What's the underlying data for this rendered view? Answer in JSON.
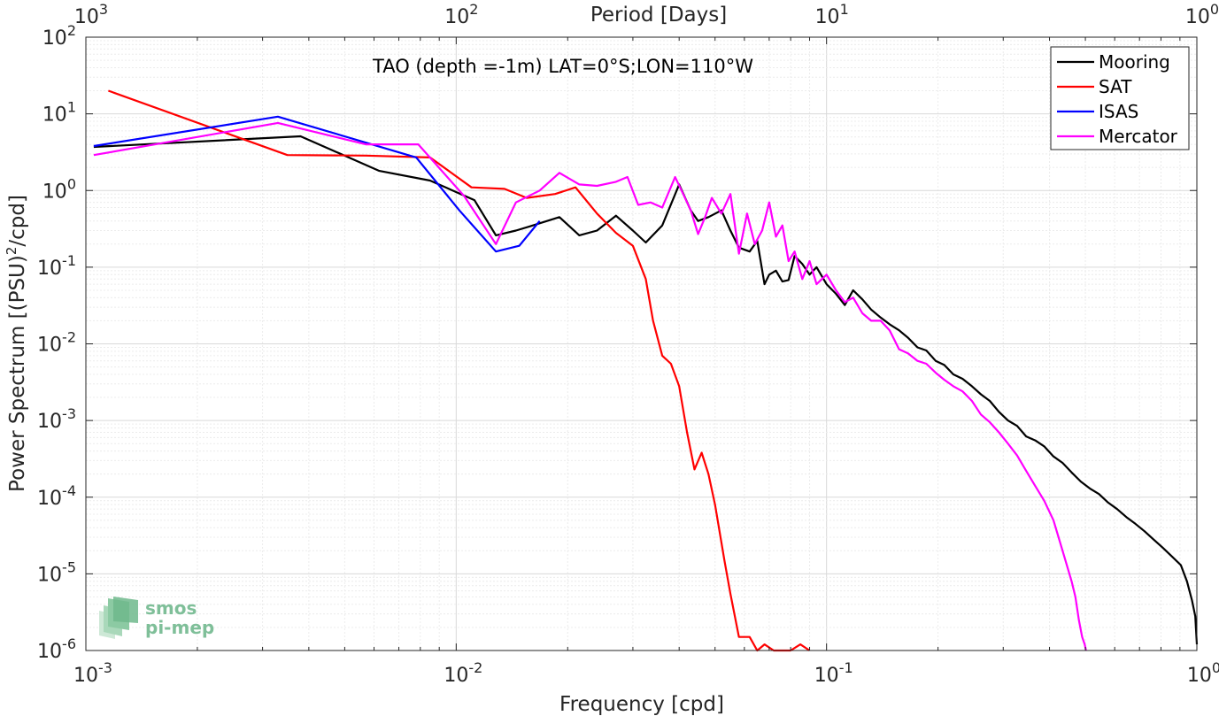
{
  "chart_data": {
    "type": "line",
    "title": "TAO (depth =-1m) LAT=0°S;LON=110°W",
    "xlabel": "Frequency [cpd]",
    "ylabel_main": "Power Spectrum [(PSU)",
    "ylabel_sup": "2",
    "ylabel_tail": "/cpd]",
    "top_xlabel": "Period [Days]",
    "x_scale": "log",
    "y_scale": "log",
    "xlim": [
      0.001,
      1
    ],
    "ylim": [
      1e-06,
      100
    ],
    "grid": true,
    "legend_position": "top-right",
    "x_ticks": [
      {
        "value": 0.001,
        "base": "10",
        "exp": "-3"
      },
      {
        "value": 0.01,
        "base": "10",
        "exp": "-2"
      },
      {
        "value": 0.1,
        "base": "10",
        "exp": "-1"
      },
      {
        "value": 1,
        "base": "10",
        "exp": "0"
      }
    ],
    "top_ticks": [
      {
        "freq": 0.001,
        "base": "10",
        "exp": "3"
      },
      {
        "freq": 0.01,
        "base": "10",
        "exp": "2"
      },
      {
        "freq": 0.1,
        "base": "10",
        "exp": "1"
      },
      {
        "freq": 1,
        "base": "10",
        "exp": "0"
      }
    ],
    "y_ticks": [
      {
        "value": 100,
        "base": "10",
        "exp": "2"
      },
      {
        "value": 10,
        "base": "10",
        "exp": "1"
      },
      {
        "value": 1,
        "base": "10",
        "exp": "0"
      },
      {
        "value": 0.1,
        "base": "10",
        "exp": "-1"
      },
      {
        "value": 0.01,
        "base": "10",
        "exp": "-2"
      },
      {
        "value": 0.001,
        "base": "10",
        "exp": "-3"
      },
      {
        "value": 0.0001,
        "base": "10",
        "exp": "-4"
      },
      {
        "value": 1e-05,
        "base": "10",
        "exp": "-5"
      },
      {
        "value": 1e-06,
        "base": "10",
        "exp": "-6"
      }
    ],
    "series": [
      {
        "name": "Mooring",
        "color": "#000000",
        "x": [
          0.00105,
          0.0038,
          0.0062,
          0.0085,
          0.0112,
          0.0128,
          0.0145,
          0.0158,
          0.019,
          0.0215,
          0.024,
          0.027,
          0.03,
          0.0325,
          0.036,
          0.04,
          0.043,
          0.045,
          0.048,
          0.052,
          0.055,
          0.058,
          0.062,
          0.065,
          0.068,
          0.07,
          0.073,
          0.076,
          0.079,
          0.082,
          0.086,
          0.09,
          0.094,
          0.1,
          0.106,
          0.112,
          0.118,
          0.125,
          0.132,
          0.14,
          0.148,
          0.157,
          0.166,
          0.176,
          0.186,
          0.197,
          0.208,
          0.22,
          0.233,
          0.247,
          0.261,
          0.276,
          0.292,
          0.309,
          0.327,
          0.346,
          0.366,
          0.387,
          0.41,
          0.434,
          0.459,
          0.486,
          0.514,
          0.544,
          0.576,
          0.609,
          0.645,
          0.682,
          0.722,
          0.764,
          0.808,
          0.855,
          0.905,
          0.94,
          0.97,
          0.99,
          1.0
        ],
        "values": [
          3.7,
          5.1,
          1.8,
          1.35,
          0.75,
          0.26,
          0.3,
          0.34,
          0.45,
          0.26,
          0.3,
          0.47,
          0.3,
          0.21,
          0.35,
          1.2,
          0.55,
          0.4,
          0.45,
          0.55,
          0.3,
          0.18,
          0.16,
          0.22,
          0.06,
          0.08,
          0.09,
          0.065,
          0.068,
          0.14,
          0.11,
          0.08,
          0.1,
          0.06,
          0.045,
          0.032,
          0.05,
          0.038,
          0.028,
          0.022,
          0.018,
          0.015,
          0.012,
          0.009,
          0.0082,
          0.006,
          0.0053,
          0.004,
          0.0035,
          0.0028,
          0.0022,
          0.0018,
          0.0013,
          0.001,
          0.00085,
          0.00062,
          0.00055,
          0.00046,
          0.00034,
          0.00028,
          0.00021,
          0.00016,
          0.00013,
          0.00011,
          8.5e-05,
          7e-05,
          5.5e-05,
          4.5e-05,
          3.6e-05,
          2.8e-05,
          2.2e-05,
          1.7e-05,
          1.3e-05,
          8e-06,
          4.5e-06,
          2.8e-06,
          1.2e-06
        ]
      },
      {
        "name": "SAT",
        "color": "#ff0000",
        "x": [
          0.00115,
          0.0035,
          0.0057,
          0.0085,
          0.011,
          0.0135,
          0.0155,
          0.0185,
          0.021,
          0.024,
          0.027,
          0.03,
          0.0325,
          0.034,
          0.036,
          0.038,
          0.04,
          0.042,
          0.044,
          0.046,
          0.048,
          0.05,
          0.053,
          0.055,
          0.058,
          0.062,
          0.065,
          0.068,
          0.072,
          0.075,
          0.08,
          0.085,
          0.09
        ],
        "values": [
          20,
          2.9,
          2.85,
          2.7,
          1.1,
          1.05,
          0.8,
          0.9,
          1.1,
          0.5,
          0.28,
          0.19,
          0.07,
          0.02,
          0.007,
          0.0055,
          0.0028,
          0.0007,
          0.00023,
          0.00038,
          0.0002,
          8e-05,
          1.5e-05,
          5.5e-06,
          1.5e-06,
          1.5e-06,
          1e-06,
          1.2e-06,
          8e-07,
          1e-06,
          7e-07,
          1.2e-06,
          9e-07
        ]
      },
      {
        "name": "ISAS",
        "color": "#0000ff",
        "x": [
          0.00105,
          0.0033,
          0.0078,
          0.0102,
          0.0128,
          0.0148,
          0.0168
        ],
        "values": [
          3.8,
          9.2,
          2.7,
          0.55,
          0.16,
          0.19,
          0.4
        ]
      },
      {
        "name": "Mercator",
        "color": "#ff00ff",
        "x": [
          0.00105,
          0.0033,
          0.0057,
          0.0079,
          0.0105,
          0.0128,
          0.0145,
          0.0168,
          0.019,
          0.0215,
          0.024,
          0.027,
          0.029,
          0.031,
          0.0335,
          0.036,
          0.039,
          0.041,
          0.043,
          0.045,
          0.047,
          0.049,
          0.052,
          0.055,
          0.058,
          0.061,
          0.064,
          0.067,
          0.07,
          0.073,
          0.076,
          0.079,
          0.082,
          0.086,
          0.09,
          0.094,
          0.1,
          0.106,
          0.112,
          0.118,
          0.125,
          0.132,
          0.14,
          0.148,
          0.157,
          0.166,
          0.176,
          0.186,
          0.197,
          0.208,
          0.22,
          0.233,
          0.247,
          0.261,
          0.276,
          0.292,
          0.309,
          0.327,
          0.346,
          0.366,
          0.387,
          0.41,
          0.434,
          0.459,
          0.47,
          0.48,
          0.49,
          0.498,
          0.502
        ],
        "values": [
          2.9,
          7.6,
          4.0,
          4.0,
          0.85,
          0.2,
          0.7,
          1.0,
          1.7,
          1.2,
          1.15,
          1.3,
          1.5,
          0.65,
          0.7,
          0.6,
          1.5,
          0.9,
          0.55,
          0.27,
          0.45,
          0.8,
          0.5,
          0.9,
          0.15,
          0.5,
          0.2,
          0.3,
          0.7,
          0.25,
          0.35,
          0.12,
          0.16,
          0.07,
          0.12,
          0.06,
          0.08,
          0.05,
          0.035,
          0.04,
          0.025,
          0.02,
          0.02,
          0.015,
          0.0085,
          0.0075,
          0.006,
          0.0055,
          0.0042,
          0.0034,
          0.0028,
          0.0024,
          0.0018,
          0.0012,
          0.00095,
          0.0007,
          0.0005,
          0.00035,
          0.00022,
          0.00014,
          9e-05,
          5e-05,
          2e-05,
          8e-06,
          5e-06,
          2.5e-06,
          1.5e-06,
          1.2e-06,
          8e-07
        ]
      }
    ]
  },
  "watermark": {
    "line1": "smos",
    "line2": "pi-mep",
    "color": "#7fbf99"
  }
}
